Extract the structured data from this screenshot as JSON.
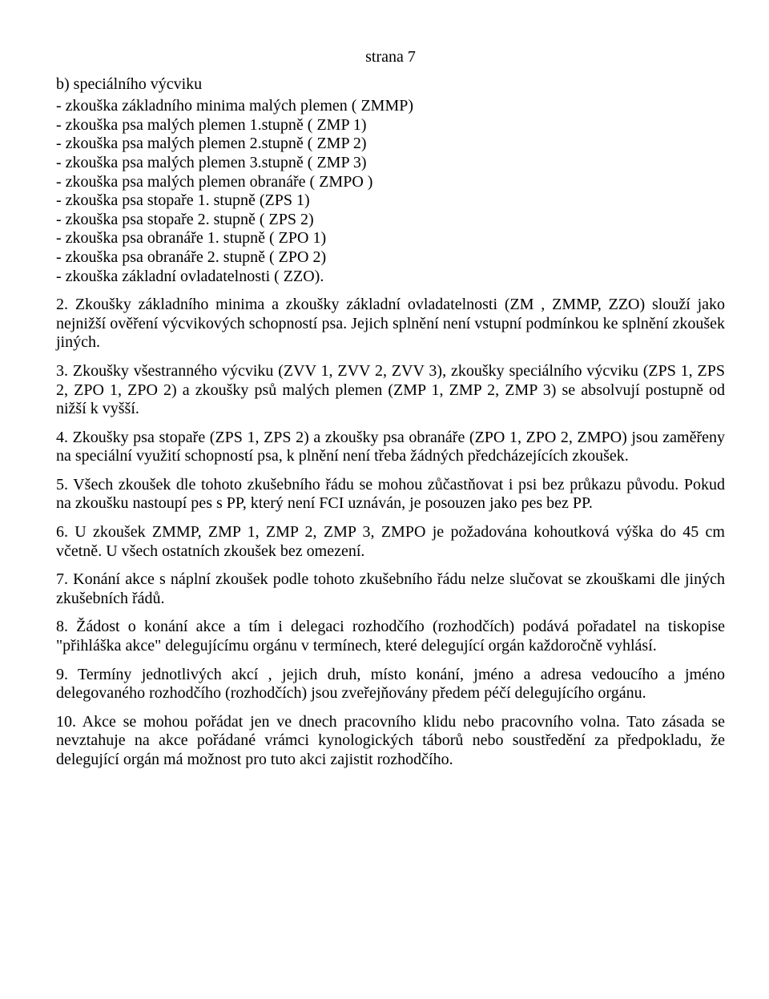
{
  "pageNumber": "strana 7",
  "sectionB": {
    "title": "b) speciálního výcviku",
    "items": [
      "- zkouška základního minima malých plemen ( ZMMP)",
      "- zkouška psa malých plemen 1.stupně ( ZMP 1)",
      "- zkouška psa malých plemen 2.stupně ( ZMP 2)",
      "- zkouška psa malých plemen 3.stupně ( ZMP 3)",
      "- zkouška psa malých plemen obranáře ( ZMPO )",
      "- zkouška psa stopaře 1. stupně (ZPS 1)",
      "- zkouška psa stopaře 2. stupně ( ZPS 2)",
      "- zkouška psa obranáře 1. stupně ( ZPO 1)",
      "- zkouška psa obranáře 2. stupně ( ZPO 2)",
      "- zkouška základní ovladatelnosti ( ZZO)."
    ]
  },
  "paragraphs": [
    "2. Zkoušky základního minima a zkoušky základní ovladatelnosti (ZM , ZMMP, ZZO) slouží jako nejnižší ověření výcvikových schopností psa. Jejich splnění není vstupní podmínkou ke splnění zkoušek jiných.",
    "3. Zkoušky všestranného výcviku (ZVV 1, ZVV 2, ZVV 3), zkoušky speciálního výcviku (ZPS 1, ZPS 2, ZPO 1, ZPO 2) a zkoušky psů malých plemen (ZMP 1, ZMP 2, ZMP 3) se absolvují postupně od nižší k vyšší.",
    "4. Zkoušky psa stopaře (ZPS 1, ZPS 2) a zkoušky psa obranáře (ZPO 1, ZPO 2, ZMPO) jsou zaměřeny na speciální využití schopností psa, k plnění není třeba žádných předcházejících zkoušek.",
    "5. Všech zkoušek dle tohoto zkušebního řádu se mohou zůčastňovat i psi bez průkazu původu. Pokud na zkoušku nastoupí pes s PP, který není FCI uznáván, je posouzen jako pes bez PP.",
    "6. U zkoušek ZMMP, ZMP 1, ZMP 2, ZMP 3, ZMPO je požadována kohoutková výška do 45 cm včetně. U všech ostatních zkoušek  bez omezení.",
    "7. Konání akce s náplní zkoušek podle tohoto zkušebního řádu nelze slučovat se zkouškami dle jiných zkušebních řádů.",
    "8. Žádost o konání akce a tím i delegaci rozhodčího (rozhodčích) podává pořadatel na tiskopise \"přihláška akce\" delegujícímu orgánu v termínech, které delegující orgán každoročně vyhlásí.",
    "9. Termíny jednotlivých akcí , jejich druh, místo konání, jméno a adresa vedoucího a jméno delegovaného rozhodčího (rozhodčích) jsou zveřejňovány předem péčí delegujícího orgánu.",
    "10. Akce se mohou pořádat jen ve dnech pracovního klidu nebo pracovního volna. Tato zásada se nevztahuje na akce pořádané vrámci kynologických táborů nebo soustředění za předpokladu, že delegující orgán má možnost pro tuto akci zajistit rozhodčího."
  ]
}
